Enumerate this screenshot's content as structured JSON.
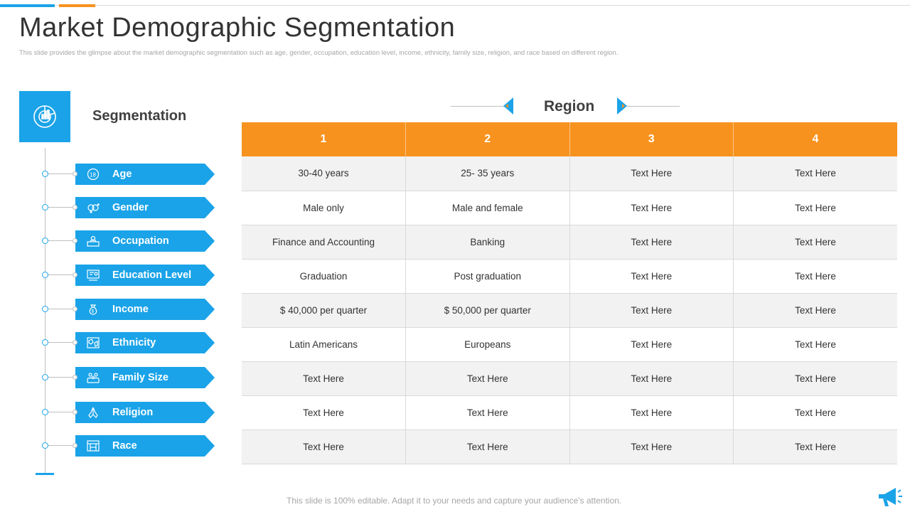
{
  "header": {
    "title": "Market Demographic Segmentation",
    "subtitle": "This slide provides the glimpse about the market demographic segmentation such as age, gender, occupation, education level, income, ethnicity, family size, religion, and race based on different region."
  },
  "segmentation": {
    "title": "Segmentation",
    "items": [
      {
        "label": "Age",
        "icon": "age-18-icon"
      },
      {
        "label": "Gender",
        "icon": "gender-icon"
      },
      {
        "label": "Occupation",
        "icon": "occupation-icon"
      },
      {
        "label": "Education Level",
        "icon": "education-icon"
      },
      {
        "label": "Income",
        "icon": "money-bag-icon"
      },
      {
        "label": "Ethnicity",
        "icon": "globe-map-icon"
      },
      {
        "label": "Family Size",
        "icon": "family-icon"
      },
      {
        "label": "Religion",
        "icon": "praying-hands-icon"
      },
      {
        "label": "Race",
        "icon": "race-icon"
      }
    ]
  },
  "region": {
    "label": "Region",
    "columns": [
      "1",
      "2",
      "3",
      "4"
    ],
    "rows": [
      [
        "30-40 years",
        "25- 35 years",
        "Text Here",
        "Text Here"
      ],
      [
        "Male only",
        "Male and female",
        "Text Here",
        "Text Here"
      ],
      [
        "Finance and Accounting",
        "Banking",
        "Text Here",
        "Text Here"
      ],
      [
        "Graduation",
        "Post graduation",
        "Text Here",
        "Text Here"
      ],
      [
        "$ 40,000 per quarter",
        "$ 50,000 per quarter",
        "Text Here",
        "Text Here"
      ],
      [
        "Latin Americans",
        "Europeans",
        "Text Here",
        "Text Here"
      ],
      [
        "Text Here",
        "Text Here",
        "Text Here",
        "Text Here"
      ],
      [
        "Text Here",
        "Text Here",
        "Text Here",
        "Text Here"
      ],
      [
        "Text Here",
        "Text Here",
        "Text Here",
        "Text Here"
      ]
    ]
  },
  "footer": {
    "note": "This slide is 100% editable. Adapt it to your needs and capture your audience's attention."
  },
  "colors": {
    "accent_blue": "#1aa3e8",
    "accent_orange": "#f7921e"
  }
}
